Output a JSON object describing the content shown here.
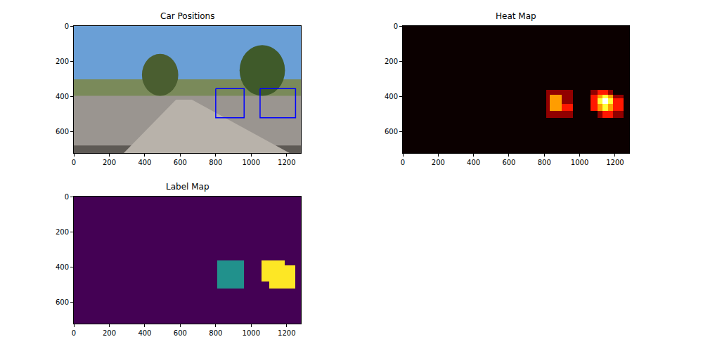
{
  "chart_data": [
    {
      "type": "image",
      "title": "Car Positions",
      "xlim": [
        0,
        1280
      ],
      "ylim": [
        720,
        0
      ],
      "xticks": [
        0,
        200,
        400,
        600,
        800,
        1000,
        1200
      ],
      "yticks": [
        0,
        200,
        400,
        600
      ],
      "color": "#0000ff",
      "boxes": [
        {
          "x0": 800,
          "y0": 355,
          "x1": 960,
          "y1": 520
        },
        {
          "x0": 1050,
          "y0": 355,
          "x1": 1250,
          "y1": 520
        }
      ]
    },
    {
      "type": "heatmap",
      "title": "Heat Map",
      "color": "hot",
      "xlim": [
        0,
        1280
      ],
      "ylim": [
        720,
        0
      ],
      "xticks": [
        0,
        200,
        400,
        600,
        800,
        1000,
        1200
      ],
      "yticks": [
        0,
        200,
        400,
        600
      ],
      "zlim": [
        0,
        5
      ],
      "x_edges": [
        0,
        810,
        830,
        900,
        960,
        1060,
        1100,
        1130,
        1160,
        1190,
        1250,
        1280
      ],
      "y_edges": [
        0,
        360,
        390,
        410,
        440,
        480,
        520,
        720
      ],
      "cells": [
        [
          0,
          0,
          0,
          0,
          0,
          0,
          0,
          0,
          0,
          0,
          0
        ],
        [
          0,
          1,
          1,
          1,
          0,
          1,
          2,
          2,
          1,
          0,
          0
        ],
        [
          0,
          1,
          3,
          1,
          0,
          2,
          3,
          4,
          3,
          1,
          0
        ],
        [
          0,
          1,
          3,
          1,
          0,
          2,
          4,
          5,
          4,
          2,
          0
        ],
        [
          0,
          1,
          3,
          2,
          0,
          2,
          3,
          4,
          3,
          2,
          0
        ],
        [
          0,
          1,
          1,
          1,
          0,
          0,
          1,
          2,
          2,
          1,
          0
        ],
        [
          0,
          0,
          0,
          0,
          0,
          0,
          0,
          0,
          0,
          0,
          0
        ]
      ]
    },
    {
      "type": "heatmap",
      "title": "Label Map",
      "color": "viridis",
      "xlim": [
        0,
        1280
      ],
      "ylim": [
        720,
        0
      ],
      "xticks": [
        0,
        200,
        400,
        600,
        800,
        1000,
        1200
      ],
      "yticks": [
        0,
        200,
        400,
        600
      ],
      "zlim": [
        0,
        2
      ],
      "x_edges": [
        0,
        810,
        830,
        900,
        960,
        1060,
        1100,
        1130,
        1160,
        1190,
        1250,
        1280
      ],
      "y_edges": [
        0,
        360,
        390,
        410,
        440,
        480,
        520,
        720
      ],
      "cells": [
        [
          0,
          0,
          0,
          0,
          0,
          0,
          0,
          0,
          0,
          0,
          0
        ],
        [
          0,
          1,
          1,
          1,
          0,
          2,
          2,
          2,
          2,
          0,
          0
        ],
        [
          0,
          1,
          1,
          1,
          0,
          2,
          2,
          2,
          2,
          2,
          0
        ],
        [
          0,
          1,
          1,
          1,
          0,
          2,
          2,
          2,
          2,
          2,
          0
        ],
        [
          0,
          1,
          1,
          1,
          0,
          2,
          2,
          2,
          2,
          2,
          0
        ],
        [
          0,
          1,
          1,
          1,
          0,
          0,
          2,
          2,
          2,
          2,
          0
        ],
        [
          0,
          0,
          0,
          0,
          0,
          0,
          0,
          0,
          0,
          0,
          0
        ]
      ]
    }
  ]
}
